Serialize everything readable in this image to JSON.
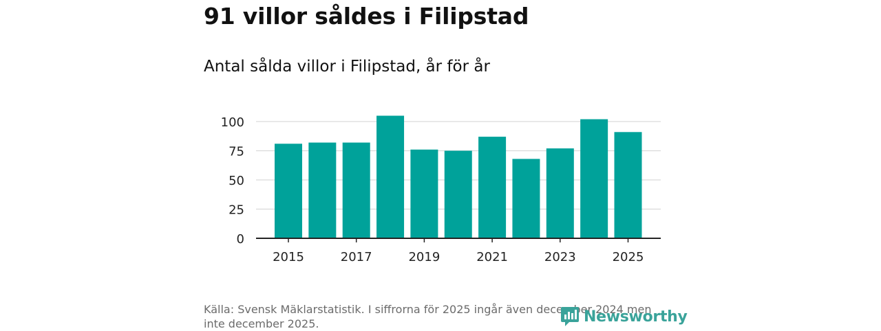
{
  "title": "91 villor såldes i Filipstad",
  "subtitle": "Antal sålda villor i Filipstad, år för år",
  "source": "Källa: Svensk Mäklarstatistik. I siffrorna för 2025 ingår även december 2024 men inte december 2025.",
  "logo": {
    "text": "Newsworthy",
    "icon": "newsworthy-logo-icon",
    "color": "#3aa39a"
  },
  "colors": {
    "bar": "#00a29a",
    "grid": "#d9d9d9",
    "axis": "#222222"
  },
  "chart_data": {
    "type": "bar",
    "title": "91 villor såldes i Filipstad",
    "subtitle": "Antal sålda villor i Filipstad, år för år",
    "xlabel": "",
    "ylabel": "",
    "categories": [
      "2015",
      "2016",
      "2017",
      "2018",
      "2019",
      "2020",
      "2021",
      "2022",
      "2023",
      "2024",
      "2025"
    ],
    "values": [
      81,
      82,
      82,
      105,
      76,
      75,
      87,
      68,
      77,
      102,
      91
    ],
    "ylim": [
      0,
      110
    ],
    "yticks": [
      0,
      25,
      50,
      75,
      100
    ],
    "xticks": [
      "2015",
      "2017",
      "2019",
      "2021",
      "2023",
      "2025"
    ],
    "grid": true,
    "legend": "none"
  }
}
